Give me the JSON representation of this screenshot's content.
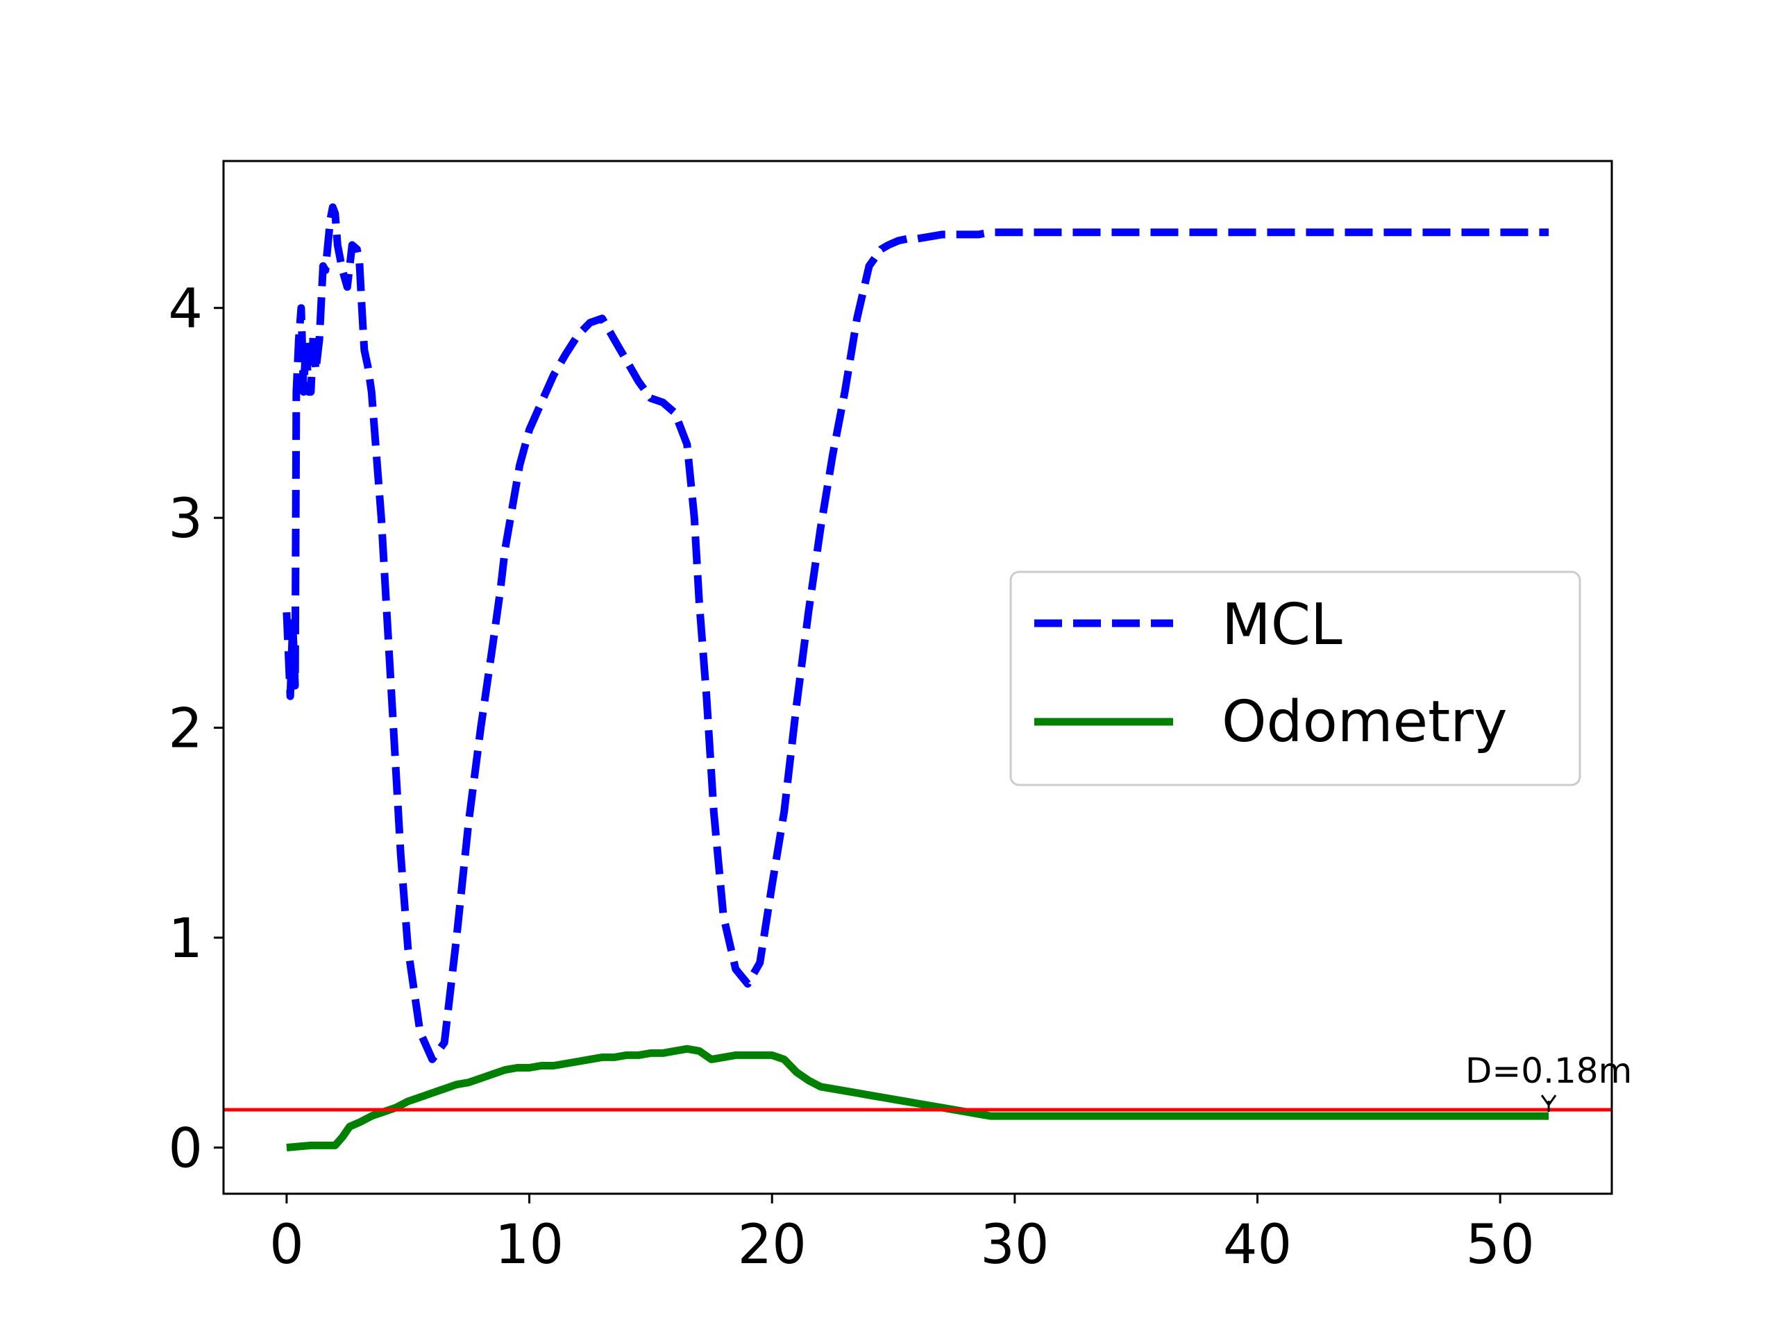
{
  "chart_data": {
    "type": "line",
    "title": "",
    "xlabel": "",
    "ylabel": "",
    "xlim": [
      -2.6,
      54.6
    ],
    "ylim": [
      -0.22,
      4.7
    ],
    "xticks": [
      0,
      10,
      20,
      30,
      40,
      50
    ],
    "yticks": [
      0,
      1,
      2,
      3,
      4
    ],
    "grid": false,
    "legend_position": "center-right",
    "threshold": {
      "y": 0.18,
      "color": "#ff0000",
      "label": "D=0.18m"
    },
    "series": [
      {
        "name": "MCL",
        "color": "#0000ff",
        "style": "dashed",
        "x": [
          0,
          0.15,
          0.25,
          0.35,
          0.4,
          0.5,
          0.6,
          0.7,
          0.8,
          0.9,
          1.0,
          1.1,
          1.2,
          1.35,
          1.5,
          1.6,
          1.7,
          1.8,
          1.9,
          2.0,
          2.1,
          2.3,
          2.5,
          2.7,
          2.9,
          3.0,
          3.1,
          3.2,
          3.35,
          3.5,
          3.7,
          3.9,
          4.1,
          4.3,
          4.5,
          4.7,
          5.0,
          5.5,
          6.0,
          6.5,
          7.0,
          7.5,
          8.0,
          8.5,
          8.8,
          9.0,
          9.3,
          9.6,
          10.0,
          10.5,
          11.0,
          11.5,
          12.0,
          12.5,
          13.0,
          13.5,
          14.0,
          14.5,
          15.0,
          15.5,
          16.0,
          16.5,
          16.8,
          17.0,
          17.3,
          17.6,
          18.0,
          18.5,
          19.0,
          19.5,
          20.0,
          20.5,
          21.0,
          21.5,
          22.0,
          22.5,
          23.0,
          23.5,
          24.0,
          24.5,
          24.8,
          25.2,
          25.6,
          26.0,
          26.5,
          27.0,
          27.5,
          28.0,
          28.5,
          29.0,
          29.5,
          30.0,
          30.5,
          31.0,
          31.5,
          32.0,
          33.0,
          34.0,
          35.0,
          37.0,
          40.0,
          45.0,
          50.0,
          52.0
        ],
        "y": [
          2.55,
          2.15,
          2.5,
          2.2,
          3.6,
          3.85,
          4.0,
          3.6,
          3.85,
          3.6,
          3.6,
          3.88,
          3.7,
          3.85,
          4.2,
          4.18,
          4.3,
          4.42,
          4.48,
          4.45,
          4.3,
          4.18,
          4.1,
          4.3,
          4.28,
          4.22,
          4.0,
          3.8,
          3.72,
          3.6,
          3.3,
          3.0,
          2.6,
          2.2,
          1.8,
          1.4,
          0.95,
          0.55,
          0.42,
          0.5,
          1.0,
          1.55,
          2.0,
          2.4,
          2.65,
          2.85,
          3.05,
          3.25,
          3.42,
          3.55,
          3.68,
          3.78,
          3.87,
          3.93,
          3.95,
          3.85,
          3.75,
          3.65,
          3.57,
          3.55,
          3.5,
          3.35,
          3.0,
          2.6,
          2.15,
          1.6,
          1.1,
          0.85,
          0.78,
          0.88,
          1.25,
          1.6,
          2.1,
          2.55,
          2.95,
          3.3,
          3.6,
          3.95,
          4.2,
          4.28,
          4.3,
          4.32,
          4.33,
          4.33,
          4.34,
          4.35,
          4.35,
          4.35,
          4.35,
          4.36,
          4.36,
          4.36,
          4.36,
          4.36,
          4.36,
          4.36,
          4.36,
          4.36,
          4.36,
          4.36,
          4.36,
          4.36,
          4.36,
          4.36
        ]
      },
      {
        "name": "Odometry",
        "color": "#008000",
        "style": "solid",
        "x": [
          0,
          1.0,
          2.0,
          2.3,
          2.6,
          3.0,
          3.5,
          4.0,
          4.5,
          5.0,
          5.5,
          6.0,
          6.5,
          7.0,
          7.5,
          8.0,
          8.5,
          9.0,
          9.5,
          10.0,
          10.5,
          11.0,
          11.5,
          12.0,
          12.5,
          13.0,
          13.5,
          14.0,
          14.5,
          15.0,
          15.5,
          16.0,
          16.5,
          17.0,
          17.5,
          18.0,
          18.5,
          19.0,
          19.5,
          20.0,
          20.5,
          21.0,
          21.5,
          22.0,
          22.5,
          23.0,
          23.5,
          24.0,
          24.5,
          25.0,
          25.5,
          26.0,
          26.5,
          27.0,
          27.5,
          28.0,
          28.5,
          29.0,
          30.0,
          32.0,
          35.0,
          40.0,
          45.0,
          50.0,
          52.0
        ],
        "y": [
          0.0,
          0.01,
          0.01,
          0.05,
          0.1,
          0.12,
          0.15,
          0.17,
          0.19,
          0.22,
          0.24,
          0.26,
          0.28,
          0.3,
          0.31,
          0.33,
          0.35,
          0.37,
          0.38,
          0.38,
          0.39,
          0.39,
          0.4,
          0.41,
          0.42,
          0.43,
          0.43,
          0.44,
          0.44,
          0.45,
          0.45,
          0.46,
          0.47,
          0.46,
          0.42,
          0.43,
          0.44,
          0.44,
          0.44,
          0.44,
          0.42,
          0.36,
          0.32,
          0.29,
          0.28,
          0.27,
          0.26,
          0.25,
          0.24,
          0.23,
          0.22,
          0.21,
          0.2,
          0.19,
          0.18,
          0.17,
          0.16,
          0.15,
          0.15,
          0.15,
          0.15,
          0.15,
          0.15,
          0.15,
          0.15
        ]
      }
    ]
  }
}
